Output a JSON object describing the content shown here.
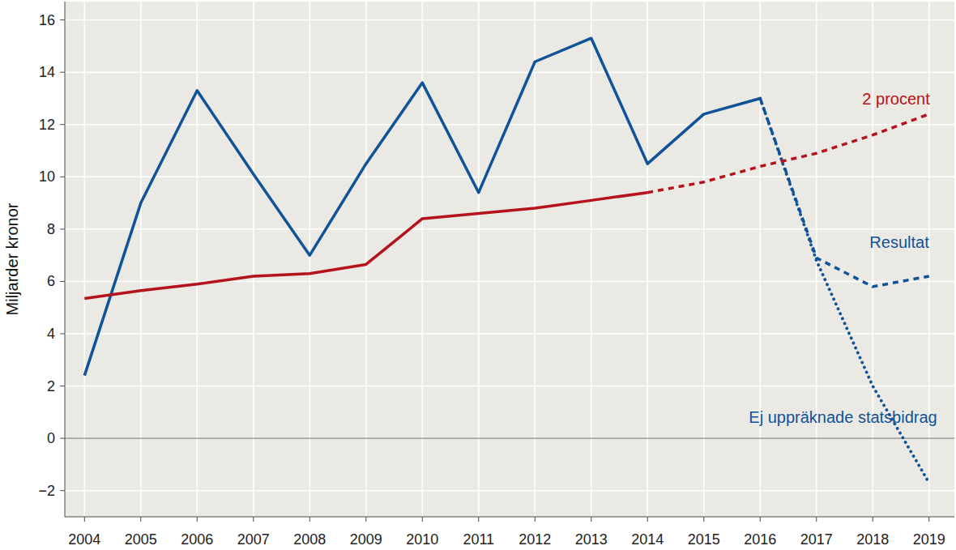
{
  "chart_data": {
    "type": "line",
    "y_label": "Miljarder kronor",
    "x": [
      2004,
      2005,
      2006,
      2007,
      2008,
      2009,
      2010,
      2011,
      2012,
      2013,
      2014,
      2015,
      2016,
      2017,
      2018,
      2019
    ],
    "xlim": [
      2003.65,
      2019.45
    ],
    "xticks": [
      2004,
      2005,
      2006,
      2007,
      2008,
      2009,
      2010,
      2011,
      2012,
      2013,
      2014,
      2015,
      2016,
      2017,
      2018,
      2019
    ],
    "ylim": [
      -3,
      16.7
    ],
    "yticks": [
      {
        "value": -2,
        "label": "−2"
      },
      0,
      2,
      4,
      6,
      8,
      10,
      12,
      14,
      16
    ],
    "grid": true,
    "series": [
      {
        "color": "#0f5399",
        "line_style": "solid",
        "values": [
          2.4,
          9.0,
          13.3,
          10.1,
          7.0,
          10.5,
          13.6,
          9.4,
          14.4,
          15.3,
          10.5,
          12.4,
          13.0,
          null,
          null,
          null
        ]
      },
      {
        "name": "Resultat",
        "color": "#0f5399",
        "line_style": "dashed",
        "values": [
          null,
          null,
          null,
          null,
          null,
          null,
          null,
          null,
          null,
          null,
          null,
          null,
          13.0,
          6.9,
          5.8,
          6.2
        ]
      },
      {
        "name": "Ej uppräknade statsbidrag",
        "color": "#0f5399",
        "line_style": "dotted",
        "values": [
          null,
          null,
          null,
          null,
          null,
          null,
          null,
          null,
          null,
          null,
          null,
          null,
          13.0,
          6.8,
          2.0,
          -1.7
        ]
      },
      {
        "color": "#b5121b",
        "line_style": "solid",
        "values": [
          5.35,
          5.65,
          5.9,
          6.2,
          6.3,
          6.65,
          8.4,
          8.6,
          8.8,
          9.1,
          9.4,
          null,
          null,
          null,
          null,
          null
        ]
      },
      {
        "name": "2 procent",
        "color": "#b5121b",
        "line_style": "dashed",
        "values": [
          null,
          null,
          null,
          null,
          null,
          null,
          null,
          null,
          null,
          null,
          9.4,
          9.8,
          10.4,
          10.9,
          11.6,
          12.4
        ]
      }
    ]
  }
}
